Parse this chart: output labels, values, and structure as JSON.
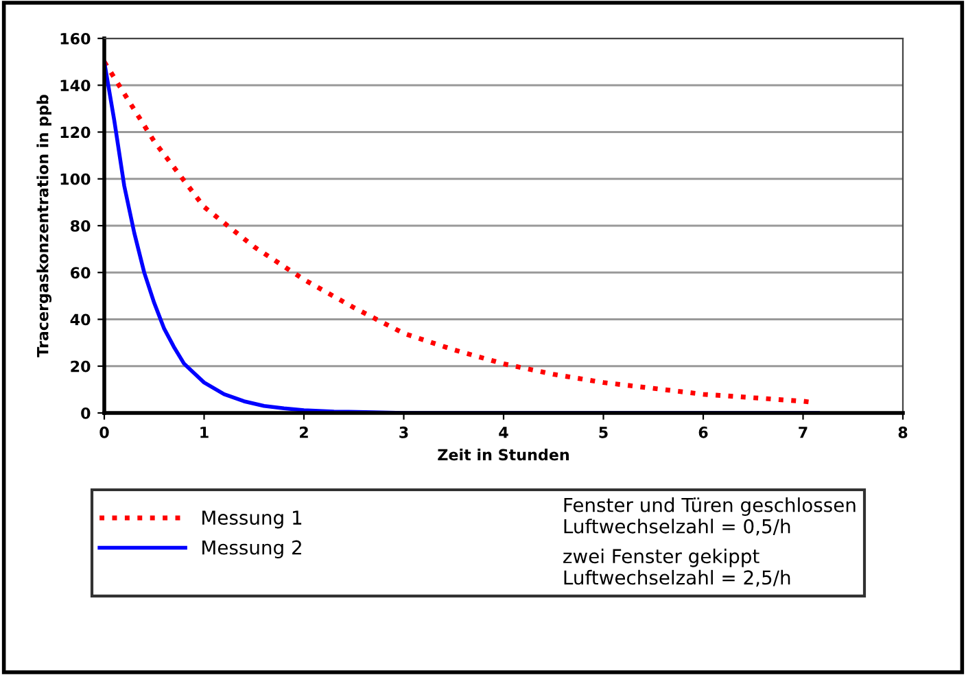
{
  "chart_data": {
    "type": "line",
    "xlabel": "Zeit in Stunden",
    "ylabel": "Tracergaskonzentration in ppb",
    "xlim": [
      0,
      8
    ],
    "xticks": [
      0,
      1,
      2,
      3,
      4,
      5,
      6,
      7,
      8
    ],
    "ylim": [
      0,
      160
    ],
    "yticks": [
      0,
      20,
      40,
      60,
      80,
      100,
      120,
      140,
      160
    ],
    "grid": "y",
    "legend": "bottom",
    "marker": "none",
    "series": [
      {
        "name": "Messung 1",
        "color": "#ff0000",
        "line_style": "dotted",
        "x": [
          0,
          0.5,
          1,
          1.5,
          2,
          2.5,
          3,
          3.5,
          4,
          4.5,
          5,
          5.5,
          6,
          6.5,
          7,
          7.1
        ],
        "values": [
          150,
          116,
          88,
          71,
          57,
          45,
          34,
          27,
          21,
          16.5,
          13,
          10.5,
          8,
          6.5,
          5,
          4.5
        ]
      },
      {
        "name": "Messung 2",
        "color": "#0000ff",
        "line_style": "solid",
        "x": [
          0,
          0.1,
          0.2,
          0.3,
          0.4,
          0.5,
          0.6,
          0.7,
          0.8,
          0.9,
          1.0,
          1.2,
          1.4,
          1.6,
          1.8,
          2.0,
          2.3,
          2.7,
          3.0,
          7.15
        ],
        "values": [
          150,
          125,
          97,
          77,
          60,
          47,
          36,
          28,
          21,
          17,
          13,
          8,
          5,
          3,
          2,
          1.2,
          0.6,
          0.3,
          0,
          0
        ]
      }
    ],
    "annotations": [
      "Fenster und Türen geschlossen\nLuftwechselzahl = 0,5/h",
      "zwei Fenster gekippt\nLuftwechselzahl = 2,5/h"
    ]
  }
}
